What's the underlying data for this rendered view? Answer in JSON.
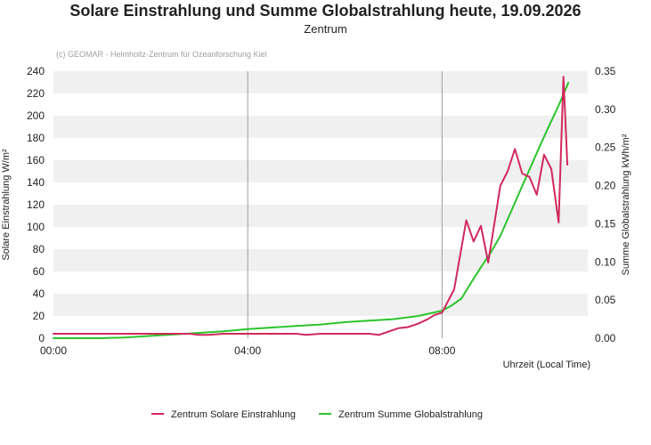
{
  "chart_data": {
    "type": "line",
    "title": "Solare Einstrahlung und Summe Globalstrahlung heute, 19.09.2026",
    "subtitle": "Zentrum",
    "credit": "(c) GEOMAR - Helmholtz-Zentrum für Ozeanforschung Kiel",
    "xlabel": "Uhrzeit (Local Time)",
    "ylabel_left": "Solare Einstrahlung W/m²",
    "ylabel_right": "Summe Globalstrahlung kWh/m²",
    "x_ticks": [
      "00:00",
      "04:00",
      "08:00"
    ],
    "xlim_hours": [
      0,
      11
    ],
    "ylim_left": [
      0,
      240
    ],
    "ylim_right": [
      0,
      0.35
    ],
    "y_ticks_left": [
      0,
      20,
      40,
      60,
      80,
      100,
      120,
      140,
      160,
      180,
      200,
      220,
      240
    ],
    "y_ticks_right": [
      "0.00",
      "0.05",
      "0.10",
      "0.15",
      "0.20",
      "0.25",
      "0.30",
      "0.35"
    ],
    "grid": "horizontal bands, vertical lines at 04:00 and 08:00",
    "legend_position": "bottom",
    "series": [
      {
        "name": "Zentrum Solare Einstrahlung",
        "axis": "left",
        "color": "#d0295c",
        "x": [
          0,
          0.5,
          1,
          1.5,
          2,
          2.5,
          2.8,
          3,
          3.2,
          3.5,
          4,
          4.5,
          5,
          5.2,
          5.5,
          6,
          6.5,
          6.7,
          6.9,
          7.1,
          7.3,
          7.5,
          7.7,
          7.85,
          8,
          8.25,
          8.5,
          8.65,
          8.8,
          8.95,
          9.2,
          9.35,
          9.5,
          9.65,
          9.8,
          9.95,
          10.1,
          10.25,
          10.4,
          10.5,
          10.58
        ],
        "y": [
          4,
          4,
          4,
          4,
          4,
          4,
          4,
          3,
          3,
          4,
          4,
          4,
          4,
          3,
          4,
          4,
          4,
          3,
          6,
          9,
          10,
          13,
          17,
          21,
          23,
          44,
          106,
          87,
          101,
          68,
          137,
          150,
          170,
          148,
          145,
          129,
          165,
          152,
          104,
          235,
          156
        ]
      },
      {
        "name": "Zentrum Summe Globalstrahlung",
        "axis": "right",
        "color": "#2dc42d",
        "x": [
          0,
          1,
          1.5,
          2,
          2.5,
          3,
          3.5,
          4,
          4.5,
          5,
          5.5,
          6,
          6.5,
          7,
          7.5,
          8,
          8.2,
          8.4,
          8.6,
          8.8,
          9,
          9.2,
          9.4,
          9.6,
          9.8,
          10,
          10.2,
          10.4,
          10.6
        ],
        "y": [
          0,
          0,
          0.001,
          0.003,
          0.005,
          0.007,
          0.009,
          0.012,
          0.014,
          0.016,
          0.018,
          0.021,
          0.023,
          0.025,
          0.029,
          0.036,
          0.043,
          0.052,
          0.073,
          0.093,
          0.112,
          0.134,
          0.163,
          0.192,
          0.221,
          0.25,
          0.278,
          0.305,
          0.335
        ]
      }
    ]
  }
}
